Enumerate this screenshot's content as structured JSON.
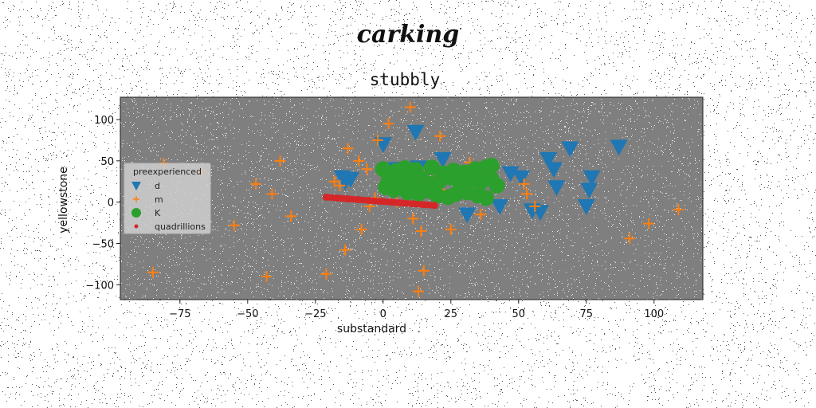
{
  "suptitle": "carking",
  "chart_data": {
    "type": "scatter",
    "title": "stubbly",
    "xlabel": "substandard",
    "ylabel": "yellowstone",
    "xlim": [
      -97,
      118
    ],
    "ylim": [
      -118,
      127
    ],
    "xticks": [
      -75,
      -50,
      -25,
      0,
      25,
      50,
      75,
      100
    ],
    "xtick_labels": [
      "−75",
      "−50",
      "−25",
      "0",
      "25",
      "50",
      "75",
      "100"
    ],
    "yticks": [
      -100,
      -50,
      0,
      50,
      100
    ],
    "ytick_labels": [
      "−100",
      "−50",
      "0",
      "50",
      "100"
    ],
    "grid": false,
    "plot_background": "#7f7f7f",
    "legend": {
      "title": "preexperienced",
      "position": "center-left"
    },
    "series": [
      {
        "name": "d",
        "marker": "triangle-down",
        "color": "#1f77b4",
        "x": [
          0,
          12,
          22,
          -15,
          -14,
          -12,
          5,
          13,
          47,
          51,
          61,
          63,
          64,
          69,
          77,
          76,
          75,
          87,
          31,
          43,
          55,
          58
        ],
        "y": [
          70,
          85,
          52,
          30,
          25,
          28,
          40,
          42,
          35,
          30,
          52,
          40,
          18,
          65,
          30,
          15,
          -5,
          67,
          -15,
          -5,
          -10,
          -12
        ]
      },
      {
        "name": "m",
        "marker": "plus",
        "color": "#ff7f0e",
        "x": [
          10,
          2,
          -2,
          21,
          -13,
          -9,
          -6,
          -18,
          -16,
          -3,
          5,
          -5,
          -38,
          -67,
          -81,
          -47,
          -41,
          -34,
          -55,
          -85,
          -43,
          -21,
          -14,
          -8,
          11,
          14,
          15,
          13,
          25,
          32,
          36,
          52,
          53,
          56,
          21,
          98,
          91,
          109
        ],
        "y": [
          115,
          95,
          75,
          80,
          65,
          50,
          40,
          25,
          20,
          5,
          0,
          -5,
          50,
          37,
          47,
          22,
          10,
          -17,
          -28,
          -85,
          -90,
          -87,
          -58,
          -33,
          -20,
          -35,
          -83,
          -108,
          -33,
          48,
          -15,
          22,
          10,
          -5,
          15,
          -26,
          -44,
          -9
        ]
      },
      {
        "name": "K",
        "marker": "circle",
        "color": "#2ca02c",
        "x": [
          0,
          5,
          8,
          12,
          18,
          22,
          26,
          30,
          34,
          38,
          40,
          2,
          6,
          10,
          14,
          17,
          21,
          25,
          28,
          32,
          36,
          40,
          42,
          4,
          9,
          13,
          16,
          20,
          24,
          27,
          31,
          35,
          38,
          1
        ],
        "y": [
          40,
          38,
          41,
          39,
          42,
          35,
          38,
          36,
          40,
          42,
          44,
          25,
          27,
          24,
          28,
          22,
          26,
          30,
          25,
          27,
          24,
          28,
          20,
          15,
          12,
          10,
          14,
          8,
          6,
          10,
          12,
          8,
          5,
          18
        ]
      },
      {
        "name": "quadrillions",
        "marker": "circle-small",
        "color": "#d62728",
        "x": [
          -21,
          -17,
          -13,
          -9,
          -5,
          -1,
          3,
          7,
          11,
          15,
          19
        ],
        "y": [
          6,
          5,
          4,
          3,
          2,
          1,
          0,
          -1,
          -2,
          -3,
          -4
        ]
      }
    ]
  }
}
